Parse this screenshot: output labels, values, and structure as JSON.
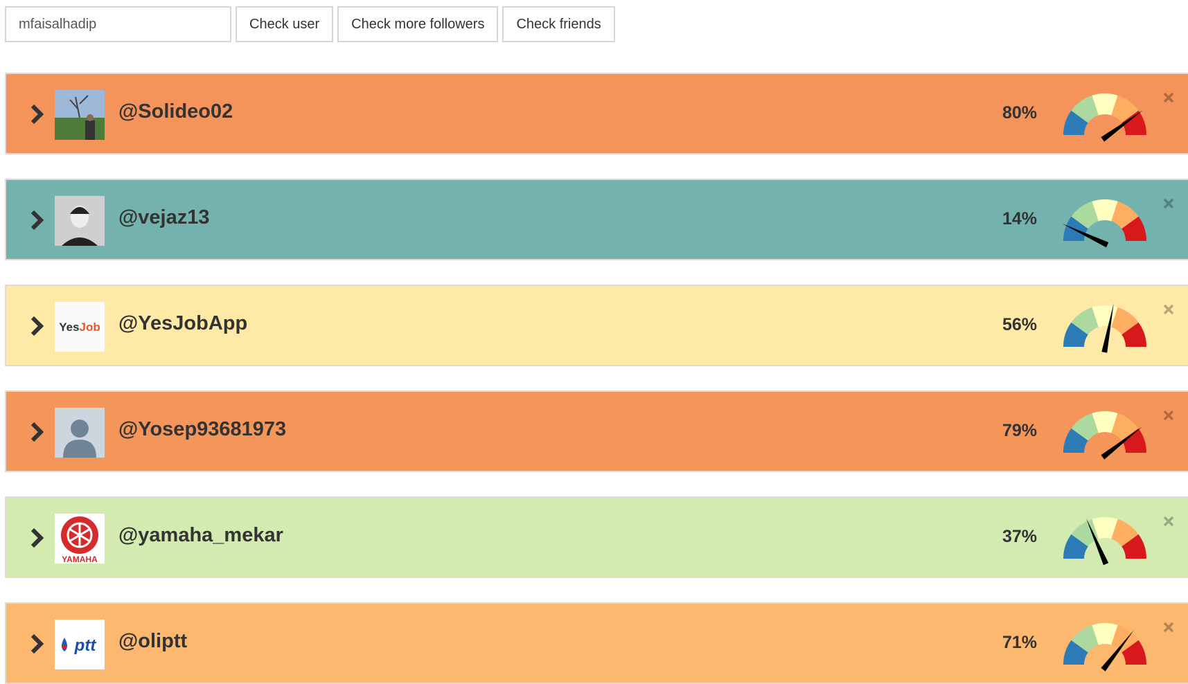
{
  "search": {
    "value": "mfaisalhadip"
  },
  "buttons": {
    "check_user": "Check user",
    "check_more_followers": "Check more followers",
    "check_friends": "Check friends"
  },
  "gauge_colors": [
    "#2c7bb6",
    "#abd9a0",
    "#ffffbf",
    "#fdae61",
    "#d7191c"
  ],
  "rows": [
    {
      "username": "@Solideo02",
      "percent_label": "80%",
      "percent": 80,
      "bg": "#f4935a",
      "avatar": "photo-landscape"
    },
    {
      "username": "@vejaz13",
      "percent_label": "14%",
      "percent": 14,
      "bg": "#74b3ad",
      "avatar": "photo-portrait"
    },
    {
      "username": "@YesJobApp",
      "percent_label": "56%",
      "percent": 56,
      "bg": "#fee9a6",
      "avatar": "logo-yesjob",
      "avatar_text": "YesJob"
    },
    {
      "username": "@Yosep93681973",
      "percent_label": "79%",
      "percent": 79,
      "bg": "#f4955a",
      "avatar": "default-user"
    },
    {
      "username": "@yamaha_mekar",
      "percent_label": "37%",
      "percent": 37,
      "bg": "#d3ebb0",
      "avatar": "logo-yamaha",
      "avatar_text": "YAMAHA"
    },
    {
      "username": "@oliptt",
      "percent_label": "71%",
      "percent": 71,
      "bg": "#fcb86e",
      "avatar": "logo-ptt",
      "avatar_text": "ptt"
    }
  ]
}
